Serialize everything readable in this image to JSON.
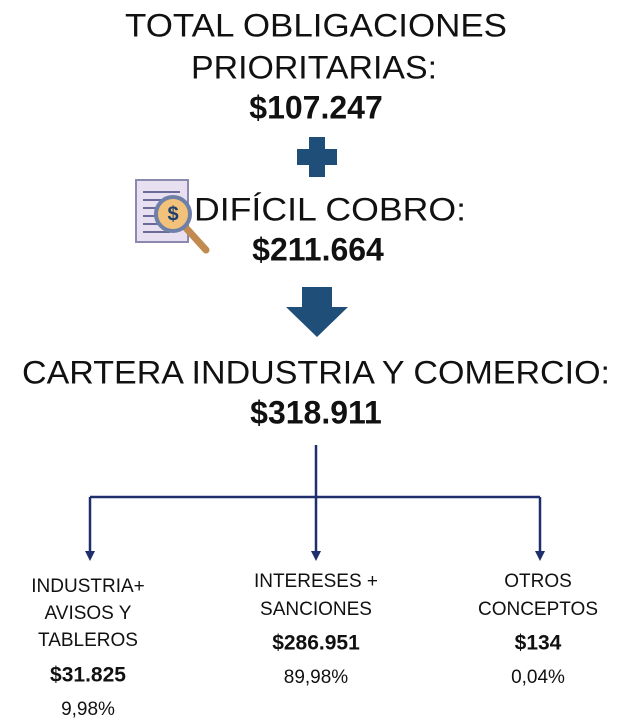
{
  "total_obligaciones": {
    "label": [
      "TOTAL OBLIGACIONES",
      "PRIORITARIAS:"
    ],
    "value": "$107.247"
  },
  "dificil_cobro": {
    "label": "DIFÍCIL COBRO:",
    "value": "$211.664"
  },
  "cartera": {
    "label": "CARTERA INDUSTRIA Y COMERCIO:",
    "value": "$318.911"
  },
  "branches": [
    {
      "label": [
        "INDUSTRIA+",
        "AVISOS Y",
        "TABLEROS"
      ],
      "value": "$31.825",
      "percent": "9,98%"
    },
    {
      "label": [
        "INTERESES +",
        "SANCIONES"
      ],
      "value": "$286.951",
      "percent": "89,98%"
    },
    {
      "label": [
        "OTROS",
        "CONCEPTOS"
      ],
      "value": "$134",
      "percent": "0,04%"
    }
  ]
}
